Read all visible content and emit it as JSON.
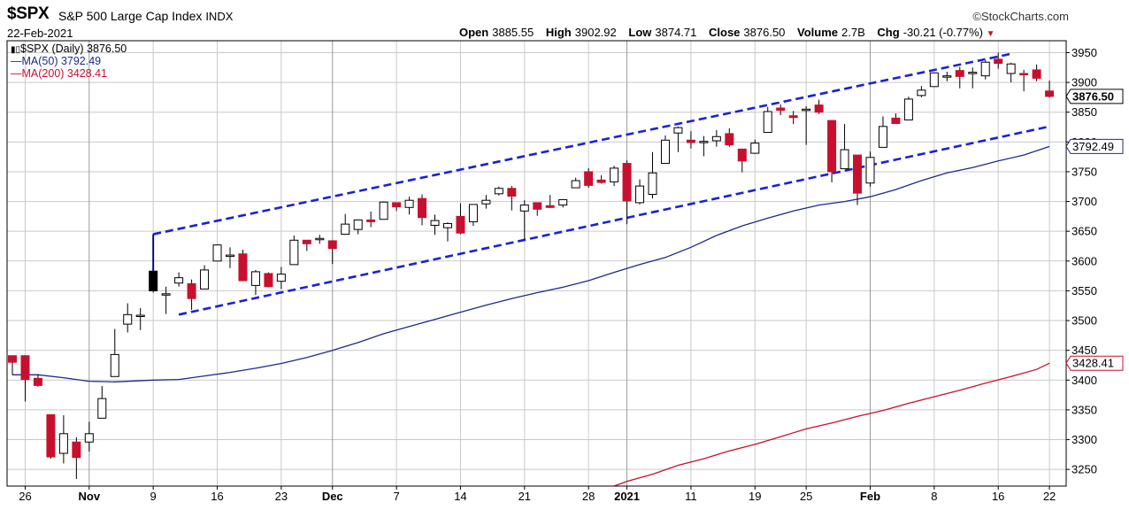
{
  "header": {
    "symbol": "$SPX",
    "name": "S&P 500 Large Cap Index",
    "exchange": "INDX",
    "date": "22-Feb-2021",
    "brand": "StockCharts.com",
    "open_label": "Open",
    "open": "3885.55",
    "high_label": "High",
    "high": "3902.92",
    "low_label": "Low",
    "low": "3874.71",
    "close_label": "Close",
    "close": "3876.50",
    "volume_label": "Volume",
    "volume": "2.7B",
    "chg_label": "Chg",
    "chg": "-30.21 (-0.77%)"
  },
  "legend": {
    "main": "$SPX (Daily) 3876.50",
    "ma50": "MA(50) 3792.49",
    "ma200": "MA(200) 3428.41"
  },
  "colors": {
    "up": "#ffffff",
    "down": "#c8102e",
    "ma50": "#1f2a8a",
    "ma200": "#c8102e",
    "trend": "#1b21d4",
    "grid": "#c9c9c9"
  },
  "chart_data": {
    "type": "candlestick",
    "y_ticks": [
      3250,
      3300,
      3350,
      3400,
      3450,
      3500,
      3550,
      3600,
      3650,
      3700,
      3750,
      3800,
      3850,
      3900,
      3950
    ],
    "ylim": [
      3222,
      3970
    ],
    "x_ticks": [
      {
        "label": "26",
        "i": 1
      },
      {
        "label": "Nov",
        "i": 6,
        "bold": true
      },
      {
        "label": "9",
        "i": 11
      },
      {
        "label": "16",
        "i": 16
      },
      {
        "label": "23",
        "i": 21
      },
      {
        "label": "Dec",
        "i": 25,
        "bold": true
      },
      {
        "label": "7",
        "i": 30
      },
      {
        "label": "14",
        "i": 35
      },
      {
        "label": "21",
        "i": 40
      },
      {
        "label": "28",
        "i": 45
      },
      {
        "label": "2021",
        "i": 48,
        "bold": true
      },
      {
        "label": "11",
        "i": 53
      },
      {
        "label": "19",
        "i": 58
      },
      {
        "label": "25",
        "i": 62
      },
      {
        "label": "Feb",
        "i": 67,
        "bold": true
      },
      {
        "label": "8",
        "i": 72
      },
      {
        "label": "16",
        "i": 77
      },
      {
        "label": "22",
        "i": 81
      }
    ],
    "candles": [
      [
        3441,
        3441,
        3409,
        3430,
        "2020-10-23"
      ],
      [
        3441,
        3442,
        3364,
        3401,
        "2020-10-26"
      ],
      [
        3403,
        3410,
        3389,
        3391,
        "2020-10-27"
      ],
      [
        3342,
        3342,
        3268,
        3271,
        "2020-10-28"
      ],
      [
        3277,
        3341,
        3260,
        3310,
        "2020-10-29"
      ],
      [
        3296,
        3304,
        3234,
        3270,
        "2020-10-30"
      ],
      [
        3296,
        3330,
        3280,
        3310,
        "2020-11-02"
      ],
      [
        3336,
        3390,
        3336,
        3369,
        "2020-11-03"
      ],
      [
        3406,
        3486,
        3406,
        3443,
        "2020-11-04"
      ],
      [
        3494,
        3529,
        3480,
        3510,
        "2020-11-05"
      ],
      [
        3508,
        3521,
        3484,
        3509,
        "2020-11-06"
      ],
      [
        3583,
        3645,
        3547,
        3550,
        "2020-11-09"
      ],
      [
        3543,
        3557,
        3511,
        3545,
        "2020-11-10"
      ],
      [
        3563,
        3581,
        3557,
        3572,
        "2020-11-11"
      ],
      [
        3562,
        3569,
        3518,
        3537,
        "2020-11-12"
      ],
      [
        3553,
        3593,
        3553,
        3585,
        "2020-11-13"
      ],
      [
        3600,
        3628,
        3600,
        3627,
        "2020-11-16"
      ],
      [
        3610,
        3623,
        3588,
        3610,
        "2020-11-17"
      ],
      [
        3612,
        3619,
        3567,
        3567,
        "2020-11-18"
      ],
      [
        3559,
        3585,
        3543,
        3582,
        "2020-11-19"
      ],
      [
        3579,
        3581,
        3556,
        3557,
        "2020-11-20"
      ],
      [
        3566,
        3590,
        3553,
        3578,
        "2020-11-23"
      ],
      [
        3594,
        3643,
        3594,
        3635,
        "2020-11-24"
      ],
      [
        3635,
        3635,
        3617,
        3629,
        "2020-11-25"
      ],
      [
        3638,
        3644,
        3629,
        3638,
        "2020-11-27"
      ],
      [
        3634,
        3635,
        3595,
        3621,
        "2020-11-30"
      ],
      [
        3645,
        3679,
        3645,
        3662,
        "2020-12-01"
      ],
      [
        3653,
        3670,
        3645,
        3669,
        "2020-12-02"
      ],
      [
        3669,
        3683,
        3657,
        3666,
        "2020-12-03"
      ],
      [
        3670,
        3700,
        3670,
        3699,
        "2020-12-04"
      ],
      [
        3698,
        3698,
        3684,
        3691,
        "2020-12-07"
      ],
      [
        3690,
        3708,
        3678,
        3702,
        "2020-12-08"
      ],
      [
        3705,
        3712,
        3660,
        3673,
        "2020-12-09"
      ],
      [
        3660,
        3678,
        3644,
        3668,
        "2020-12-10"
      ],
      [
        3656,
        3665,
        3633,
        3663,
        "2020-12-11"
      ],
      [
        3675,
        3697,
        3645,
        3647,
        "2020-12-14"
      ],
      [
        3666,
        3695,
        3659,
        3695,
        "2020-12-15"
      ],
      [
        3696,
        3711,
        3688,
        3702,
        "2020-12-16"
      ],
      [
        3713,
        3725,
        3710,
        3722,
        "2020-12-17"
      ],
      [
        3722,
        3726,
        3685,
        3709,
        "2020-12-18"
      ],
      [
        3684,
        3702,
        3636,
        3694,
        "2020-12-21"
      ],
      [
        3698,
        3698,
        3676,
        3687,
        "2020-12-22"
      ],
      [
        3693,
        3711,
        3689,
        3690,
        "2020-12-23"
      ],
      [
        3694,
        3703,
        3690,
        3703,
        "2020-12-24"
      ],
      [
        3723,
        3740,
        3723,
        3735,
        "2020-12-28"
      ],
      [
        3750,
        3756,
        3723,
        3727,
        "2020-12-29"
      ],
      [
        3736,
        3744,
        3730,
        3732,
        "2020-12-30"
      ],
      [
        3733,
        3760,
        3726,
        3756,
        "2020-12-31"
      ],
      [
        3764,
        3769,
        3662,
        3701,
        "2021-01-04"
      ],
      [
        3698,
        3737,
        3695,
        3726,
        "2021-01-05"
      ],
      [
        3712,
        3783,
        3705,
        3748,
        "2021-01-06"
      ],
      [
        3764,
        3811,
        3764,
        3803,
        "2021-01-07"
      ],
      [
        3815,
        3826,
        3783,
        3824,
        "2021-01-08"
      ],
      [
        3803,
        3818,
        3789,
        3799,
        "2021-01-11"
      ],
      [
        3801,
        3810,
        3776,
        3801,
        "2021-01-12"
      ],
      [
        3802,
        3820,
        3792,
        3809,
        "2021-01-13"
      ],
      [
        3814,
        3823,
        3792,
        3795,
        "2021-01-14"
      ],
      [
        3788,
        3788,
        3749,
        3768,
        "2021-01-15"
      ],
      [
        3781,
        3804,
        3780,
        3798,
        "2021-01-19"
      ],
      [
        3816,
        3859,
        3816,
        3851,
        "2021-01-20"
      ],
      [
        3857,
        3863,
        3845,
        3853,
        "2021-01-21"
      ],
      [
        3844,
        3852,
        3830,
        3841,
        "2021-01-22"
      ],
      [
        3855,
        3860,
        3795,
        3855,
        "2021-01-25"
      ],
      [
        3862,
        3871,
        3847,
        3850,
        "2021-01-26"
      ],
      [
        3836,
        3836,
        3732,
        3750,
        "2021-01-27"
      ],
      [
        3755,
        3830,
        3755,
        3787,
        "2021-01-28"
      ],
      [
        3778,
        3778,
        3694,
        3714,
        "2021-01-29"
      ],
      [
        3731,
        3784,
        3725,
        3774,
        "2021-02-01"
      ],
      [
        3791,
        3843,
        3791,
        3826,
        "2021-02-02"
      ],
      [
        3840,
        3848,
        3832,
        3831,
        "2021-02-03"
      ],
      [
        3837,
        3876,
        3837,
        3872,
        "2021-02-04"
      ],
      [
        3878,
        3894,
        3875,
        3887,
        "2021-02-05"
      ],
      [
        3893,
        3916,
        3893,
        3916,
        "2021-02-08"
      ],
      [
        3911,
        3918,
        3902,
        3911,
        "2021-02-09"
      ],
      [
        3920,
        3926,
        3890,
        3910,
        "2021-02-10"
      ],
      [
        3917,
        3925,
        3890,
        3917,
        "2021-02-11"
      ],
      [
        3911,
        3937,
        3905,
        3934,
        "2021-02-12"
      ],
      [
        3939,
        3950,
        3923,
        3932,
        "2021-02-16"
      ],
      [
        3915,
        3933,
        3900,
        3931,
        "2021-02-17"
      ],
      [
        3915,
        3921,
        3885,
        3913,
        "2021-02-18"
      ],
      [
        3921,
        3930,
        3902,
        3907,
        "2021-02-19"
      ],
      [
        3885.55,
        3902.92,
        3874.71,
        3876.5,
        "2021-02-22"
      ]
    ],
    "ma50": [
      [
        0,
        3409
      ],
      [
        2,
        3409
      ],
      [
        4,
        3404
      ],
      [
        6,
        3398
      ],
      [
        8,
        3397
      ],
      [
        11,
        3400
      ],
      [
        13,
        3401
      ],
      [
        15,
        3407
      ],
      [
        17,
        3413
      ],
      [
        19,
        3420
      ],
      [
        21,
        3428
      ],
      [
        23,
        3438
      ],
      [
        25,
        3450
      ],
      [
        27,
        3463
      ],
      [
        29,
        3478
      ],
      [
        31,
        3490
      ],
      [
        33,
        3502
      ],
      [
        35,
        3514
      ],
      [
        37,
        3526
      ],
      [
        39,
        3537
      ],
      [
        41,
        3547
      ],
      [
        43,
        3556
      ],
      [
        45,
        3567
      ],
      [
        47,
        3581
      ],
      [
        49,
        3594
      ],
      [
        51,
        3606
      ],
      [
        53,
        3623
      ],
      [
        55,
        3643
      ],
      [
        57,
        3659
      ],
      [
        59,
        3672
      ],
      [
        61,
        3684
      ],
      [
        63,
        3694
      ],
      [
        65,
        3700
      ],
      [
        67,
        3708
      ],
      [
        69,
        3720
      ],
      [
        71,
        3735
      ],
      [
        73,
        3748
      ],
      [
        75,
        3757
      ],
      [
        77,
        3768
      ],
      [
        79,
        3778
      ],
      [
        81,
        3792.49
      ]
    ],
    "ma200": [
      [
        47,
        3222
      ],
      [
        48,
        3230
      ],
      [
        50,
        3242
      ],
      [
        52,
        3257
      ],
      [
        54,
        3268
      ],
      [
        56,
        3281
      ],
      [
        58,
        3292
      ],
      [
        60,
        3305
      ],
      [
        62,
        3318
      ],
      [
        64,
        3328
      ],
      [
        66,
        3339
      ],
      [
        68,
        3349
      ],
      [
        70,
        3361
      ],
      [
        72,
        3372
      ],
      [
        74,
        3383
      ],
      [
        76,
        3395
      ],
      [
        78,
        3406
      ],
      [
        80,
        3418
      ],
      [
        81,
        3428.41
      ]
    ],
    "trendlines": [
      [
        [
          11,
          3645
        ],
        [
          78,
          3948
        ]
      ],
      [
        [
          13,
          3510
        ],
        [
          81,
          3826
        ]
      ]
    ],
    "trend_end_tick": [
      11,
      3645,
      3583
    ],
    "price_tags": [
      {
        "value": 3876.5,
        "label": "3876.50",
        "color": "#000000",
        "bold": true
      },
      {
        "value": 3792.49,
        "label": "3792.49",
        "color": "#1f2a8a",
        "bold": false
      },
      {
        "value": 3428.41,
        "label": "3428.41",
        "color": "#c8102e",
        "bold": false
      }
    ]
  }
}
